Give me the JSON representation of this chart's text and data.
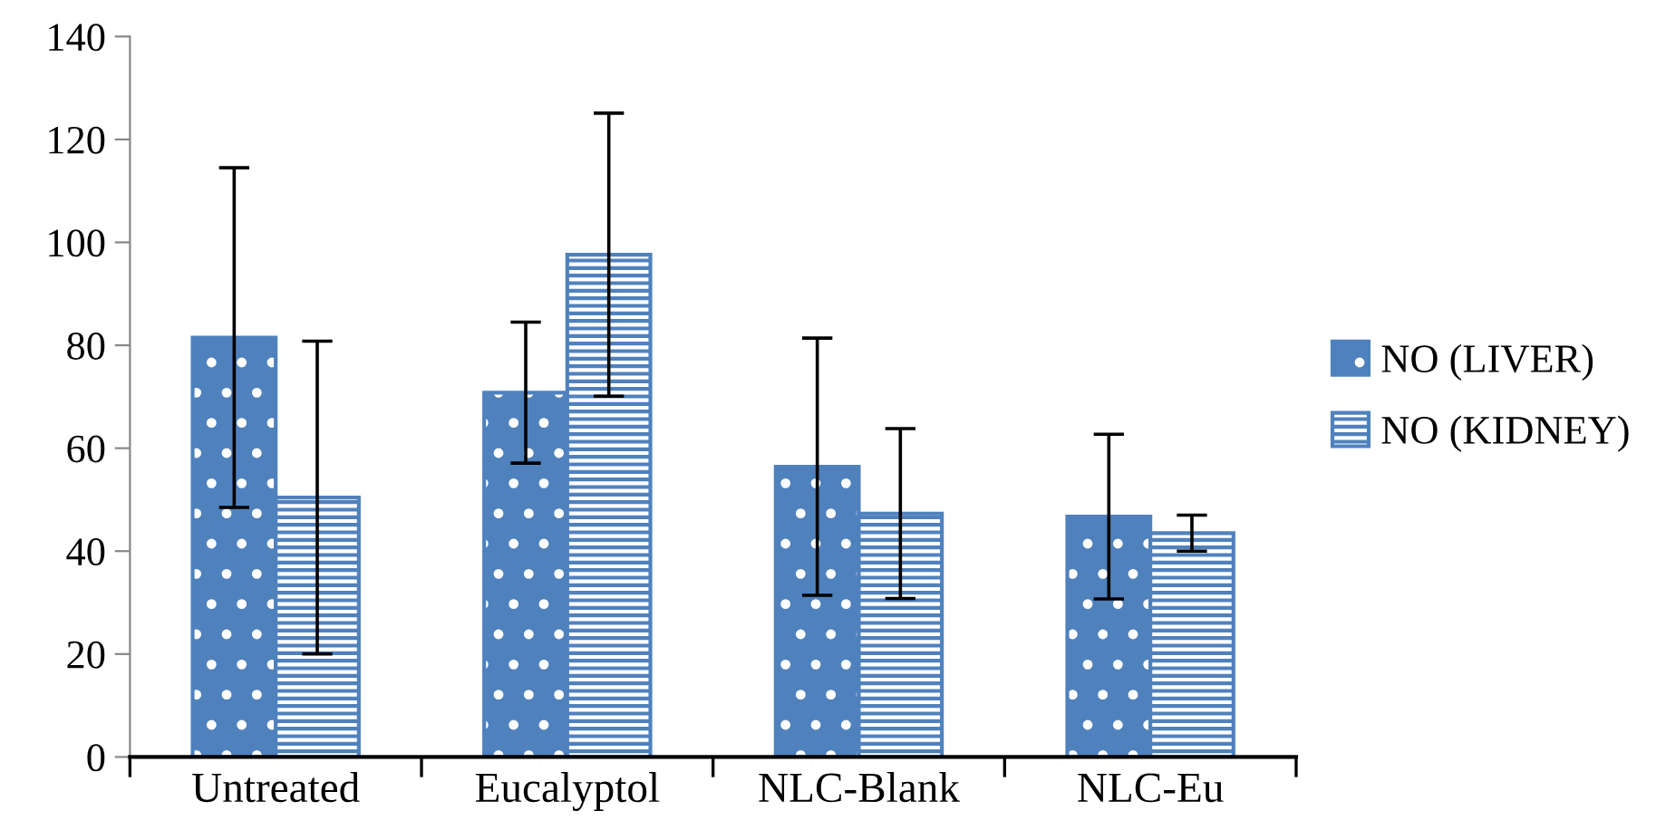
{
  "chart_data": {
    "type": "bar",
    "categories": [
      "Untreated",
      "Eucalyptol",
      "NLC-Blank",
      "NLC-Eu"
    ],
    "series": [
      {
        "name": "NO (LIVER)",
        "color": "#4f81bd",
        "values": [
          81.5,
          70.8,
          56.4,
          46.7
        ],
        "errors": [
          33,
          13.7,
          25,
          16
        ]
      },
      {
        "name": "NO (KIDNEY)",
        "color": "#4f81bd",
        "values": [
          50.4,
          97.6,
          47.3,
          43.5
        ],
        "errors": [
          30.4,
          27.5,
          16.5,
          3.5
        ]
      }
    ],
    "ylim": [
      0,
      140
    ],
    "yticks": [
      0,
      20,
      40,
      60,
      80,
      100,
      120,
      140
    ],
    "grid": false,
    "legend": "right"
  }
}
